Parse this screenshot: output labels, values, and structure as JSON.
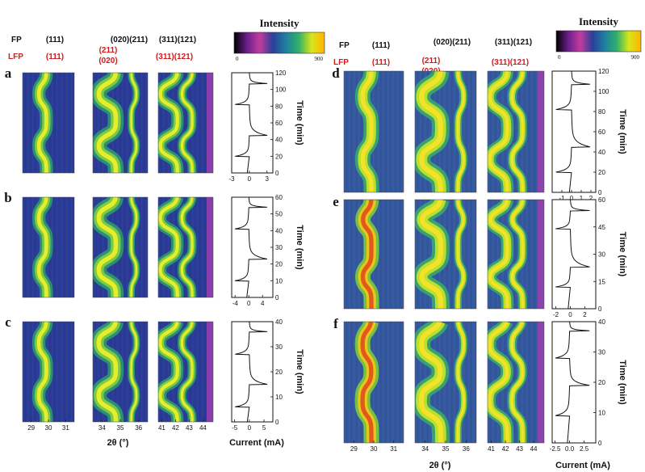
{
  "chart_data": {
    "type": "heatmap",
    "colorbar": {
      "title": "Intensity",
      "min_label": "0",
      "max_label": "900",
      "colors": [
        "#000000",
        "#6b1f8a",
        "#c23c9e",
        "#2a3f9a",
        "#1f7fa0",
        "#2fb06a",
        "#d8e61a",
        "#ffb400"
      ]
    },
    "series_labels": {
      "fp_label": "FP",
      "lfp_label": "LFP",
      "fp_color": "#111111",
      "lfp_color": "#d41a1a"
    },
    "peak_labels": {
      "fp_111": "(111)",
      "fp_020_211": "(020)(211)",
      "fp_311_121": "(311)(121)",
      "lfp_111": "(111)",
      "lfp_211": "(211)",
      "lfp_020": "(020)",
      "lfp_311_121": "(311)(121)"
    },
    "x_axis": {
      "label": "2θ (°)",
      "panel1_ticks": [
        "29",
        "30",
        "31"
      ],
      "panel2_ticks": [
        "34",
        "35",
        "36"
      ],
      "panel3_ticks_left": [
        "41",
        "42",
        "43",
        "44"
      ],
      "panel3_ticks_right": [
        "41",
        "42",
        "43",
        "44"
      ]
    },
    "current_axis_label": "Current (mA)",
    "time_axis_label": "Time (min)",
    "rows": [
      {
        "letter": "a",
        "time_range": [
          0,
          120
        ],
        "time_ticks": [
          "0",
          "20",
          "40",
          "60",
          "80",
          "100",
          "120"
        ],
        "current_range": [
          -3,
          4
        ],
        "current_ticks": [
          "-3",
          "0",
          "3"
        ],
        "switch_times": [
          20,
          45,
          82,
          107
        ],
        "cycles": 2
      },
      {
        "letter": "b",
        "time_range": [
          0,
          60
        ],
        "time_ticks": [
          "0",
          "10",
          "20",
          "30",
          "40",
          "50",
          "60"
        ],
        "current_range": [
          -5,
          7
        ],
        "current_ticks": [
          "-4",
          "0",
          "4"
        ],
        "switch_times": [
          10,
          23,
          41,
          54
        ],
        "cycles": 2
      },
      {
        "letter": "c",
        "time_range": [
          0,
          40
        ],
        "time_ticks": [
          "0",
          "10",
          "20",
          "30",
          "40"
        ],
        "current_range": [
          -6,
          8
        ],
        "current_ticks": [
          "-5",
          "0",
          "5"
        ],
        "switch_times": [
          6,
          15,
          27,
          36
        ],
        "cycles": 2
      },
      {
        "letter": "d",
        "time_range": [
          0,
          120
        ],
        "time_ticks": [
          "0",
          "20",
          "40",
          "60",
          "80",
          "100",
          "120"
        ],
        "current_range": [
          -2,
          2.5
        ],
        "current_ticks": [
          "-1",
          "0",
          "1",
          "2"
        ],
        "switch_times": [
          20,
          45,
          82,
          107
        ],
        "cycles": 2
      },
      {
        "letter": "e",
        "time_range": [
          0,
          60
        ],
        "time_ticks": [
          "0",
          "15",
          "30",
          "45",
          "60"
        ],
        "current_range": [
          -2.5,
          3.5
        ],
        "current_ticks": [
          "-2",
          "0",
          "2"
        ],
        "switch_times": [
          12,
          23,
          44,
          54
        ],
        "cycles": 2
      },
      {
        "letter": "f",
        "time_range": [
          0,
          40
        ],
        "time_ticks": [
          "0",
          "10",
          "20",
          "30",
          "40"
        ],
        "current_range": [
          -3,
          4.5
        ],
        "current_ticks": [
          "-2.5",
          "0.0",
          "2.5"
        ],
        "switch_times": [
          9,
          19,
          28,
          37
        ],
        "cycles": 2
      }
    ]
  }
}
